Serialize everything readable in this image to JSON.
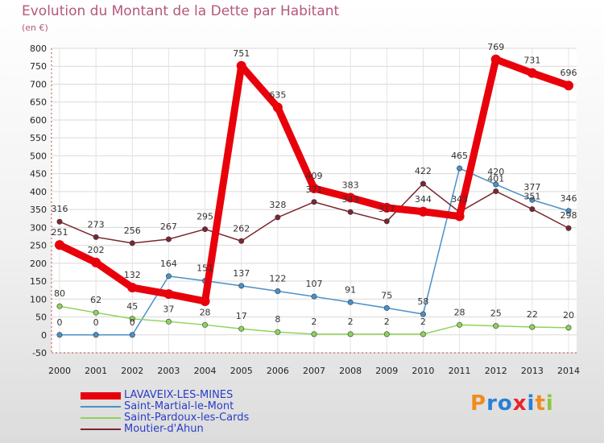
{
  "title": "Evolution du Montant de la Dette par Habitant",
  "subtitle": "(en €)",
  "logo": {
    "text": "Proxiti",
    "colors": [
      "#f08c1e",
      "#2a7fd4",
      "#2a7fd4",
      "#e8242c",
      "#2a7fd4",
      "#f08c1e",
      "#8cc63f"
    ]
  },
  "chart_data": {
    "type": "line",
    "x": [
      "2000",
      "2001",
      "2002",
      "2003",
      "2004",
      "2005",
      "2006",
      "2007",
      "2008",
      "2009",
      "2010",
      "2011",
      "2012",
      "2013",
      "2014"
    ],
    "ylim": [
      -50,
      800
    ],
    "yticks": [
      -50,
      0,
      50,
      100,
      150,
      200,
      250,
      300,
      350,
      400,
      450,
      500,
      550,
      600,
      650,
      700,
      750,
      800
    ],
    "grid": true,
    "legend_position": "bottom-left",
    "series": [
      {
        "name": "LAVAVEIX-LES-MINES",
        "color": "#e8000b",
        "values": [
          251,
          202,
          132,
          114,
          94,
          751,
          635,
          409,
          383,
          355,
          344,
          331,
          769,
          731,
          696
        ],
        "labels": [
          "251",
          "202",
          "132",
          "",
          "",
          "751",
          "635",
          "409",
          "383",
          "",
          "344",
          "",
          "769",
          "731",
          "696"
        ]
      },
      {
        "name": "Saint-Martial-le-Mont",
        "color": "#4a90c8",
        "values": [
          0,
          0,
          0,
          164,
          151,
          137,
          122,
          107,
          91,
          75,
          58,
          465,
          420,
          377,
          346
        ],
        "labels": [
          "0",
          "0",
          "0",
          "164",
          "151",
          "137",
          "122",
          "107",
          "91",
          "75",
          "58",
          "465",
          "420",
          "377",
          "346"
        ]
      },
      {
        "name": "Saint-Pardoux-les-Cards",
        "color": "#8fd35a",
        "values": [
          80,
          62,
          45,
          37,
          28,
          17,
          8,
          2,
          2,
          2,
          2,
          28,
          25,
          22,
          20
        ],
        "labels": [
          "80",
          "62",
          "45",
          "37",
          "28",
          "17",
          "8",
          "2",
          "2",
          "2",
          "2",
          "28",
          "25",
          "22",
          "20"
        ]
      },
      {
        "name": "Moutier-d'Ahun",
        "color": "#7b2630",
        "values": [
          316,
          273,
          256,
          267,
          295,
          262,
          328,
          371,
          343,
          317,
          422,
          343,
          401,
          351,
          298
        ],
        "labels": [
          "316",
          "273",
          "256",
          "267",
          "295",
          "262",
          "328",
          "371",
          "343",
          "317",
          "422",
          "343",
          "401",
          "351",
          "298"
        ]
      }
    ]
  }
}
